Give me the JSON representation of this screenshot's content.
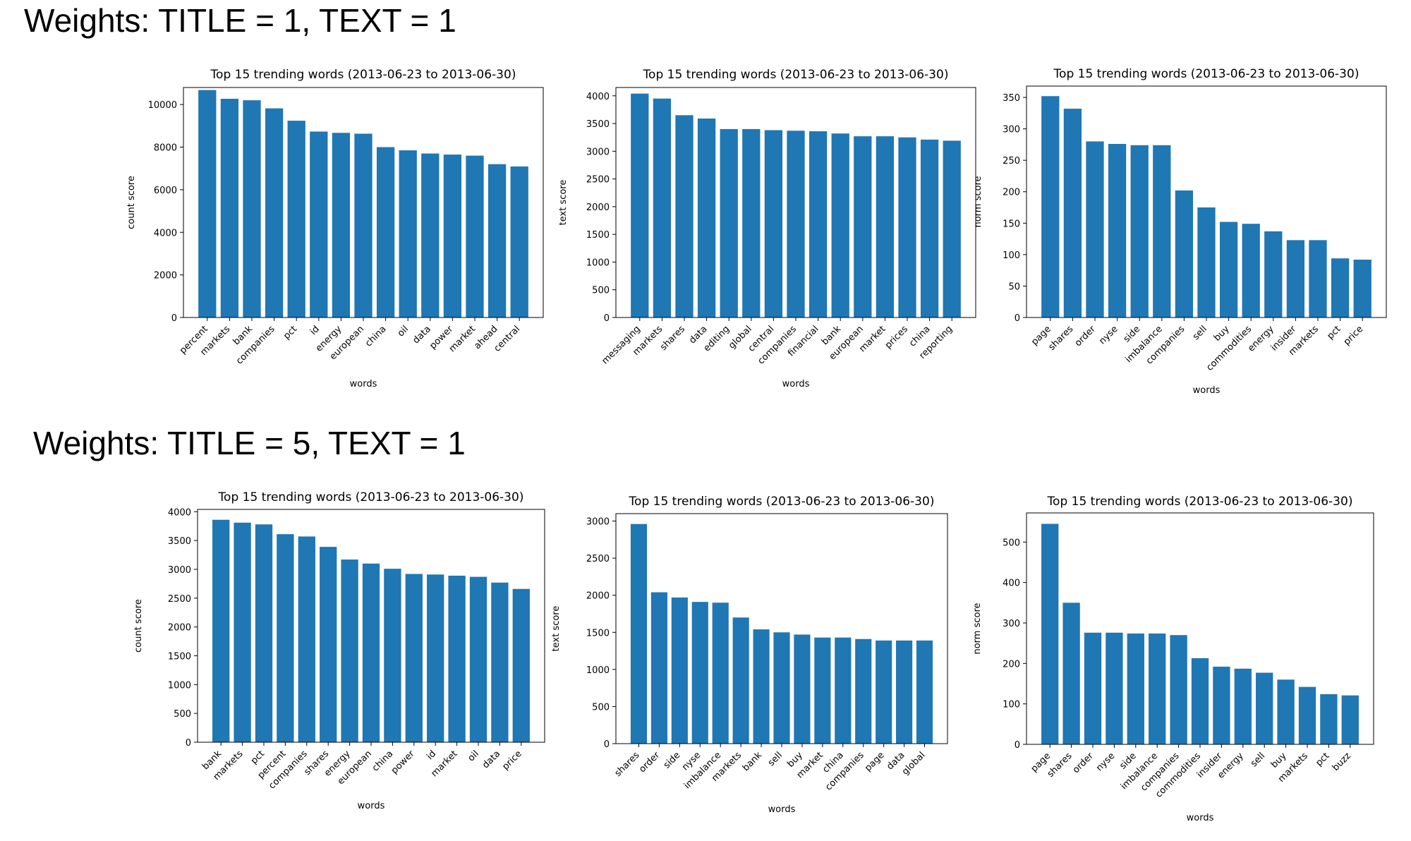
{
  "headings": {
    "row1": "Weights: TITLE = 1, TEXT = 1",
    "row2": "Weights: TITLE = 5, TEXT = 1"
  },
  "colors": {
    "bar": "#1f77b4"
  },
  "chart_data": [
    {
      "type": "bar",
      "title": "Top 15 trending words (2013-06-23 to 2013-06-30)",
      "xlabel": "words",
      "ylabel": "count score",
      "ylim": [
        0,
        10800
      ],
      "yticks": [
        0,
        2000,
        4000,
        6000,
        8000,
        10000
      ],
      "categories": [
        "percent",
        "markets",
        "bank",
        "companies",
        "pct",
        "id",
        "energy",
        "european",
        "china",
        "oil",
        "data",
        "power",
        "market",
        "ahead",
        "central"
      ],
      "values": [
        10680,
        10270,
        10200,
        9820,
        9240,
        8730,
        8670,
        8630,
        8000,
        7850,
        7700,
        7650,
        7600,
        7200,
        7090
      ]
    },
    {
      "type": "bar",
      "title": "Top 15 trending words (2013-06-23 to 2013-06-30)",
      "xlabel": "words",
      "ylabel": "text score",
      "ylim": [
        0,
        4150
      ],
      "yticks": [
        0,
        500,
        1000,
        1500,
        2000,
        2500,
        3000,
        3500,
        4000
      ],
      "categories": [
        "messaging",
        "markets",
        "shares",
        "data",
        "editing",
        "global",
        "central",
        "companies",
        "financial",
        "bank",
        "european",
        "market",
        "prices",
        "china",
        "reporting"
      ],
      "values": [
        4040,
        3950,
        3650,
        3590,
        3400,
        3400,
        3380,
        3370,
        3360,
        3320,
        3270,
        3270,
        3250,
        3210,
        3190
      ]
    },
    {
      "type": "bar",
      "title": "Top 15 trending words (2013-06-23 to 2013-06-30)",
      "xlabel": "words",
      "ylabel": "norm score",
      "ylim": [
        0,
        368
      ],
      "yticks": [
        0,
        50,
        100,
        150,
        200,
        250,
        300,
        350
      ],
      "categories": [
        "page",
        "shares",
        "order",
        "nyse",
        "side",
        "imbalance",
        "companies",
        "sell",
        "buy",
        "commodities",
        "energy",
        "insider",
        "markets",
        "pct",
        "price"
      ],
      "values": [
        352,
        332,
        280,
        276,
        274,
        274,
        202,
        175,
        152,
        149,
        137,
        123,
        123,
        94,
        92
      ]
    },
    {
      "type": "bar",
      "title": "Top 15 trending words (2013-06-23 to 2013-06-30)",
      "xlabel": "words",
      "ylabel": "count score",
      "ylim": [
        0,
        4040
      ],
      "yticks": [
        0,
        500,
        1000,
        1500,
        2000,
        2500,
        3000,
        3500,
        4000
      ],
      "categories": [
        "bank",
        "markets",
        "pct",
        "percent",
        "companies",
        "shares",
        "energy",
        "european",
        "china",
        "power",
        "id",
        "market",
        "oil",
        "data",
        "price"
      ],
      "values": [
        3860,
        3810,
        3780,
        3610,
        3570,
        3390,
        3170,
        3100,
        3010,
        2920,
        2910,
        2890,
        2870,
        2770,
        2660
      ]
    },
    {
      "type": "bar",
      "title": "Top 15 trending words (2013-06-23 to 2013-06-30)",
      "xlabel": "words",
      "ylabel": "text score",
      "ylim": [
        0,
        3100
      ],
      "yticks": [
        0,
        500,
        1000,
        1500,
        2000,
        2500,
        3000
      ],
      "categories": [
        "shares",
        "order",
        "side",
        "nyse",
        "imbalance",
        "markets",
        "bank",
        "sell",
        "buy",
        "market",
        "china",
        "companies",
        "page",
        "data",
        "global"
      ],
      "values": [
        2960,
        2040,
        1970,
        1910,
        1900,
        1700,
        1540,
        1500,
        1470,
        1430,
        1430,
        1410,
        1390,
        1390,
        1390
      ]
    },
    {
      "type": "bar",
      "title": "Top 15 trending words (2013-06-23 to 2013-06-30)",
      "xlabel": "words",
      "ylabel": "norm score",
      "ylim": [
        0,
        572
      ],
      "yticks": [
        0,
        100,
        200,
        300,
        400,
        500
      ],
      "categories": [
        "page",
        "shares",
        "order",
        "nyse",
        "side",
        "imbalance",
        "companies",
        "commodities",
        "insider",
        "energy",
        "sell",
        "buy",
        "markets",
        "pct",
        "buzz"
      ],
      "values": [
        545,
        350,
        276,
        276,
        274,
        274,
        270,
        213,
        192,
        187,
        177,
        160,
        142,
        124,
        121
      ]
    }
  ]
}
